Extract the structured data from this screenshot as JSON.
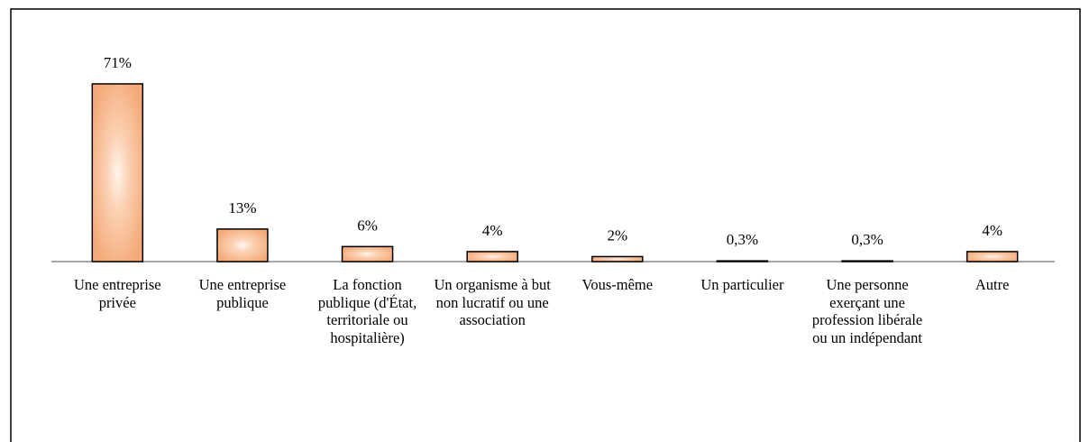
{
  "chart_data": {
    "type": "bar",
    "categories": [
      "Une entreprise privée",
      "Une entreprise publique",
      "La fonction publique (d'État, territoriale ou hospitalière)",
      "Un organisme à but non lucratif ou une association",
      "Vous-même",
      "Un particulier",
      "Une personne exerçant une profession libérale ou un indépendant",
      "Autre"
    ],
    "values": [
      71,
      13,
      6,
      4,
      2,
      0.3,
      0.3,
      4
    ],
    "value_labels": [
      "71%",
      "13%",
      "6%",
      "4%",
      "2%",
      "0,3%",
      "0,3%",
      "4%"
    ],
    "color": "#f7b88a"
  }
}
